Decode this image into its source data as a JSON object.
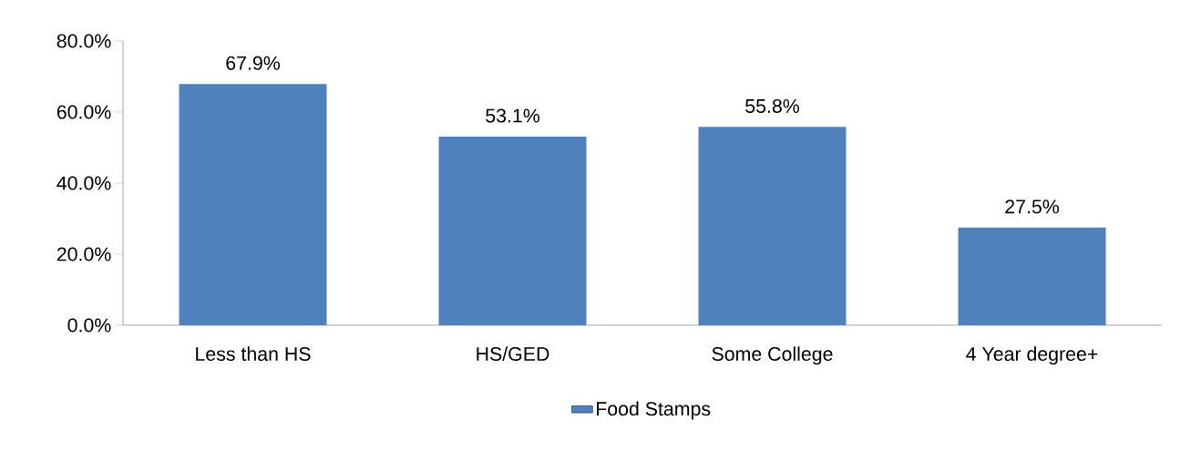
{
  "chart_data": {
    "type": "bar",
    "categories": [
      "Less than HS",
      "HS/GED",
      "Some College",
      "4 Year degree+"
    ],
    "series": [
      {
        "name": "Food Stamps",
        "color": "#4f81bd",
        "values": [
          67.9,
          53.1,
          55.8,
          27.5
        ],
        "value_labels": [
          "67.9%",
          "53.1%",
          "55.8%",
          "27.5%"
        ]
      }
    ],
    "ylim": [
      0,
      80
    ],
    "yticks": [
      {
        "value": 0,
        "label": "0.0%"
      },
      {
        "value": 20,
        "label": "20.0%"
      },
      {
        "value": 40,
        "label": "40.0%"
      },
      {
        "value": 60,
        "label": "60.0%"
      },
      {
        "value": 80,
        "label": "80.0%"
      }
    ],
    "grid": false,
    "legend": "bottom"
  }
}
